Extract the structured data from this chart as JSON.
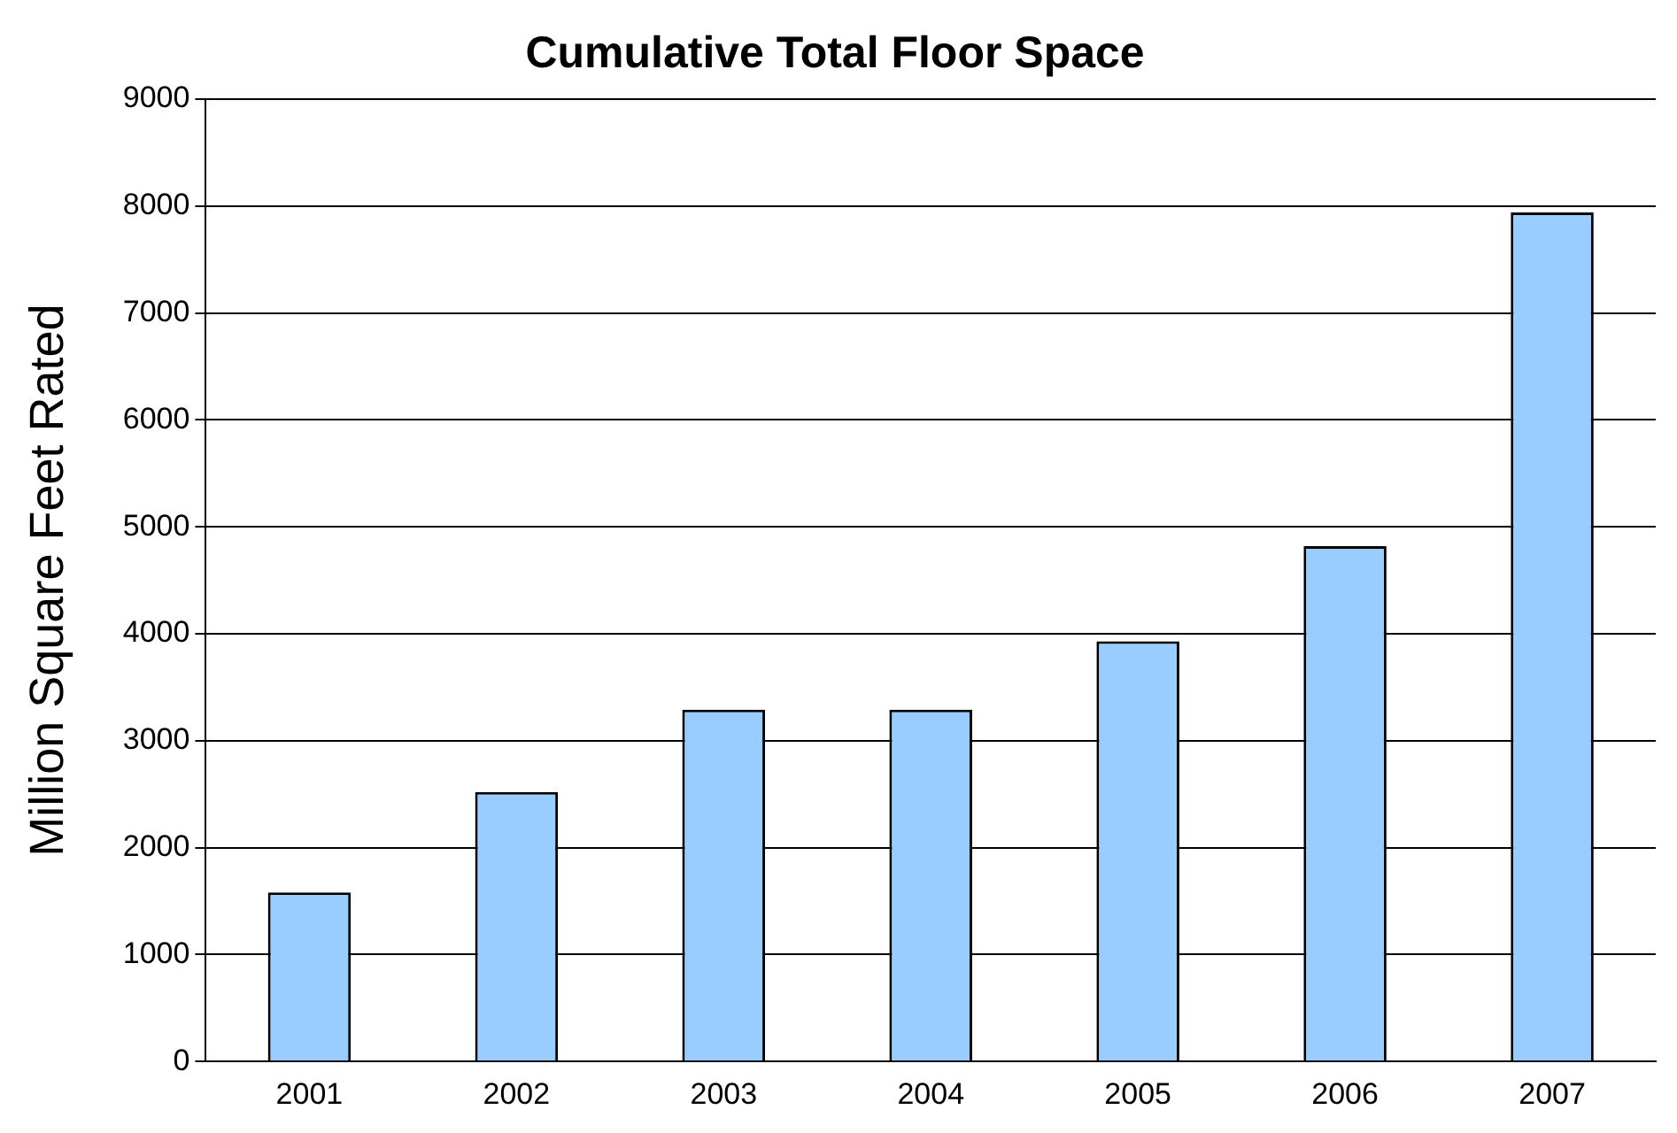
{
  "chart_data": {
    "type": "bar",
    "title": "Cumulative Total Floor Space",
    "ylabel": "Million Square Feet Rated",
    "categories": [
      "2001",
      "2002",
      "2003",
      "2004",
      "2005",
      "2006",
      "2007"
    ],
    "values": [
      1580,
      2520,
      3290,
      3290,
      3930,
      4820,
      7940
    ],
    "color": "#99ccff",
    "ylim": [
      0,
      9000
    ],
    "yticks": [
      0,
      1000,
      2000,
      3000,
      4000,
      5000,
      6000,
      7000,
      8000,
      9000
    ],
    "grid": "y",
    "legend": false
  }
}
